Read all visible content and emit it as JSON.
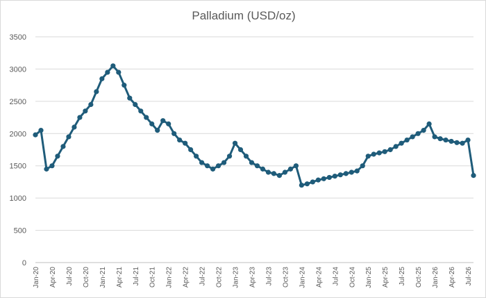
{
  "chart_data": {
    "type": "line",
    "title": "Palladium (USD/oz)",
    "xlabel": "",
    "ylabel": "",
    "ylim": [
      0,
      3500
    ],
    "yticks": [
      "0",
      "500",
      "1000",
      "1500",
      "2000",
      "2500",
      "3000",
      "3500"
    ],
    "yticks_values": [
      0,
      500,
      1000,
      1500,
      2000,
      2500,
      3000,
      3500
    ],
    "grid": "horizontal",
    "legend": "none",
    "line_color": "#1f5c7a",
    "x_tick_labels": [
      "Jan-20",
      "Apr-20",
      "Jul-20",
      "Oct-20",
      "Jan-21",
      "Apr-21",
      "Jul-21",
      "Oct-21",
      "Jan-22",
      "Apr-22",
      "Jul-22",
      "Oct-22",
      "Jan-23",
      "Apr-23",
      "Jul-23",
      "Oct-23",
      "Jan-24",
      "Apr-24",
      "Jul-24",
      "Oct-24",
      "Jan-25",
      "Apr-25",
      "Jul-25",
      "Oct-25",
      "Jan-26",
      "Apr-26",
      "Jul-26"
    ],
    "series": [
      {
        "x": [
          "Jan-20",
          "Feb-20",
          "Mar-20",
          "Apr-20",
          "May-20",
          "Jun-20",
          "Jul-20",
          "Aug-20",
          "Sep-20",
          "Oct-20",
          "Nov-20",
          "Dec-20",
          "Jan-21",
          "Feb-21",
          "Mar-21",
          "Apr-21",
          "May-21",
          "Jun-21",
          "Jul-21",
          "Aug-21",
          "Sep-21",
          "Oct-21",
          "Nov-21",
          "Dec-21",
          "Jan-22",
          "Feb-22",
          "Mar-22",
          "Apr-22",
          "May-22",
          "Jun-22",
          "Jul-22",
          "Aug-22",
          "Sep-22",
          "Oct-22",
          "Nov-22",
          "Dec-22",
          "Jan-23",
          "Feb-23",
          "Mar-23",
          "Apr-23",
          "May-23",
          "Jun-23",
          "Jul-23",
          "Aug-23",
          "Sep-23",
          "Oct-23",
          "Nov-23",
          "Dec-23",
          "Jan-24",
          "Feb-24",
          "Mar-24",
          "Apr-24",
          "May-24",
          "Jun-24",
          "Jul-24",
          "Aug-24",
          "Sep-24",
          "Oct-24",
          "Nov-24",
          "Dec-24",
          "Jan-25",
          "Feb-25",
          "Mar-25",
          "Apr-25",
          "May-25",
          "Jun-25",
          "Jul-25",
          "Aug-25",
          "Sep-25",
          "Oct-25",
          "Nov-25",
          "Dec-25",
          "Jan-26",
          "Feb-26",
          "Mar-26",
          "Apr-26",
          "May-26",
          "Jun-26",
          "Jul-26",
          "Aug-26"
        ],
        "values": [
          1980,
          2050,
          1450,
          1500,
          1650,
          1800,
          1950,
          2100,
          2250,
          2350,
          2450,
          2650,
          2850,
          2950,
          3050,
          2950,
          2750,
          2550,
          2450,
          2350,
          2250,
          2150,
          2050,
          2200,
          2150,
          2000,
          1900,
          1850,
          1750,
          1650,
          1550,
          1500,
          1450,
          1500,
          1550,
          1650,
          1850,
          1750,
          1650,
          1550,
          1500,
          1450,
          1400,
          1380,
          1350,
          1400,
          1450,
          1500,
          1200,
          1220,
          1250,
          1280,
          1300,
          1320,
          1340,
          1360,
          1380,
          1400,
          1420,
          1500,
          1650,
          1680,
          1700,
          1720,
          1750,
          1800,
          1850,
          1900,
          1950,
          2000,
          2050,
          2150,
          1950,
          1920,
          1900,
          1880,
          1860,
          1850,
          1900,
          1350
        ]
      }
    ]
  }
}
